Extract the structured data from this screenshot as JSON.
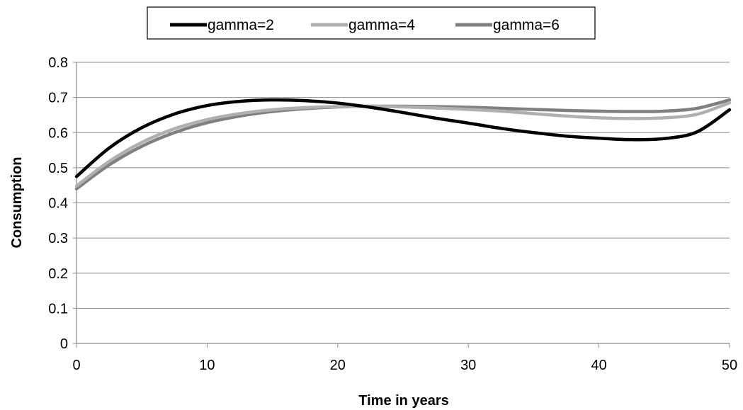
{
  "chart_data": {
    "type": "line",
    "title": "",
    "xlabel": "Time in years",
    "ylabel": "Consumption",
    "xlim": [
      0,
      50
    ],
    "ylim": [
      0,
      0.8
    ],
    "x_ticks": [
      0,
      10,
      20,
      30,
      40,
      50
    ],
    "y_ticks": [
      0,
      0.1,
      0.2,
      0.3,
      0.4,
      0.5,
      0.6,
      0.7,
      0.8
    ],
    "x_tick_labels": [
      "0",
      "10",
      "20",
      "30",
      "40",
      "50"
    ],
    "y_tick_labels": [
      "0",
      "0.1",
      "0.2",
      "0.3",
      "0.4",
      "0.5",
      "0.6",
      "0.7",
      "0.8"
    ],
    "grid": "horizontal",
    "legend_position": "top-center",
    "series": [
      {
        "name": "gamma=2",
        "color": "#000000",
        "x": [
          0,
          2.5,
          5,
          7.5,
          10,
          12.5,
          15,
          17.5,
          20,
          22.5,
          25,
          27.5,
          30,
          32.5,
          35,
          37.5,
          40,
          42.5,
          45,
          47.5,
          50
        ],
        "y": [
          0.475,
          0.556,
          0.614,
          0.653,
          0.677,
          0.689,
          0.693,
          0.691,
          0.684,
          0.672,
          0.657,
          0.641,
          0.627,
          0.612,
          0.6,
          0.59,
          0.584,
          0.58,
          0.583,
          0.602,
          0.665
        ]
      },
      {
        "name": "gamma=4",
        "color": "#b0b0b0",
        "x": [
          0,
          2.5,
          5,
          7.5,
          10,
          12.5,
          15,
          17.5,
          20,
          22.5,
          25,
          27.5,
          30,
          32.5,
          35,
          37.5,
          40,
          42.5,
          45,
          47.5,
          50
        ],
        "y": [
          0.448,
          0.518,
          0.572,
          0.611,
          0.637,
          0.654,
          0.665,
          0.671,
          0.674,
          0.675,
          0.673,
          0.67,
          0.666,
          0.661,
          0.654,
          0.647,
          0.642,
          0.64,
          0.642,
          0.652,
          0.685
        ]
      },
      {
        "name": "gamma=6",
        "color": "#808080",
        "x": [
          0,
          2.5,
          5,
          7.5,
          10,
          12.5,
          15,
          17.5,
          20,
          22.5,
          25,
          27.5,
          30,
          32.5,
          35,
          37.5,
          40,
          42.5,
          45,
          47.5,
          50
        ],
        "y": [
          0.44,
          0.508,
          0.561,
          0.6,
          0.628,
          0.647,
          0.66,
          0.668,
          0.673,
          0.675,
          0.675,
          0.674,
          0.672,
          0.669,
          0.666,
          0.663,
          0.661,
          0.66,
          0.661,
          0.669,
          0.693
        ]
      }
    ]
  }
}
